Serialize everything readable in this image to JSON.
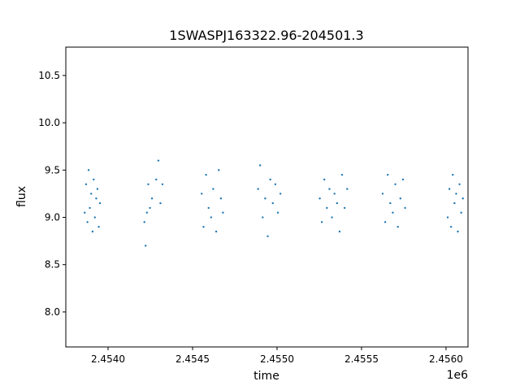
{
  "chart_data": {
    "type": "scatter",
    "title": "1SWASPJ163322.96-204501.3",
    "xlabel": "time",
    "ylabel": "flux",
    "x_offset_label": "1e6",
    "xlim": [
      2453750,
      2456130
    ],
    "ylim": [
      7.63,
      10.8
    ],
    "xticks": [
      {
        "value": 2454000,
        "label": "2.4540"
      },
      {
        "value": 2454500,
        "label": "2.4545"
      },
      {
        "value": 2455000,
        "label": "2.4550"
      },
      {
        "value": 2455500,
        "label": "2.4555"
      },
      {
        "value": 2456000,
        "label": "2.4560"
      }
    ],
    "yticks": [
      {
        "value": 8.0,
        "label": "8.0"
      },
      {
        "value": 8.5,
        "label": "8.5"
      },
      {
        "value": 9.0,
        "label": "9.0"
      },
      {
        "value": 9.5,
        "label": "9.5"
      },
      {
        "value": 10.0,
        "label": "10.0"
      },
      {
        "value": 10.5,
        "label": "10.5"
      }
    ],
    "grid": false,
    "marker_color": "#1f77b4",
    "series": [
      {
        "x": [
          2453862,
          2453870,
          2453878,
          2453885,
          2453892,
          2453900,
          2453908,
          2453915,
          2453922,
          2453930,
          2453937,
          2453945,
          2453952,
          2454215,
          2454222,
          2454230,
          2454238,
          2454248,
          2454260,
          2454285,
          2454298,
          2454310,
          2454322,
          2454554,
          2454565,
          2454580,
          2454595,
          2454610,
          2454622,
          2454640,
          2454655,
          2454668,
          2454680,
          2454888,
          2454900,
          2454915,
          2454930,
          2454945,
          2454960,
          2454975,
          2454990,
          2455005,
          2455020,
          2455253,
          2455265,
          2455280,
          2455295,
          2455310,
          2455325,
          2455340,
          2455355,
          2455370,
          2455385,
          2455400,
          2455415,
          2455625,
          2455640,
          2455655,
          2455670,
          2455685,
          2455700,
          2455715,
          2455730,
          2455745,
          2455758,
          2456010,
          2456020,
          2456030,
          2456040,
          2456050,
          2456060,
          2456070,
          2456080,
          2456090,
          2456100
        ],
        "y": [
          9.05,
          9.35,
          8.95,
          9.5,
          9.1,
          9.25,
          8.85,
          9.4,
          9.0,
          9.2,
          9.3,
          8.9,
          9.15,
          8.95,
          8.7,
          9.05,
          9.35,
          9.1,
          9.2,
          9.4,
          9.6,
          9.15,
          9.35,
          9.25,
          8.9,
          9.45,
          9.1,
          9.0,
          9.3,
          8.85,
          9.5,
          9.2,
          9.05,
          9.3,
          9.55,
          9.0,
          9.2,
          8.8,
          9.4,
          9.15,
          9.35,
          9.05,
          9.25,
          9.2,
          8.95,
          9.4,
          9.1,
          9.3,
          9.0,
          9.25,
          9.15,
          8.85,
          9.45,
          9.1,
          9.3,
          9.25,
          8.95,
          9.45,
          9.15,
          9.05,
          9.35,
          8.9,
          9.2,
          9.4,
          9.1,
          9.0,
          9.3,
          8.9,
          9.45,
          9.15,
          9.25,
          8.85,
          9.35,
          9.05,
          9.2
        ]
      }
    ]
  }
}
